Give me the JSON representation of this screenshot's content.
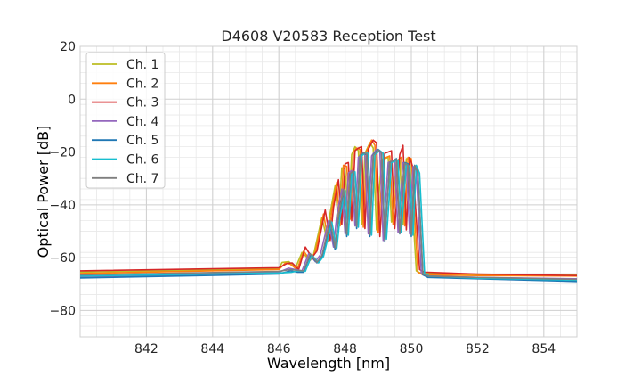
{
  "chart_data": {
    "type": "line",
    "title": "D4608 V20583 Reception Test",
    "xlabel": "Wavelength [nm]",
    "ylabel": "Optical Power [dB]",
    "xlim": [
      840.0,
      855.0
    ],
    "ylim": [
      -90,
      20
    ],
    "x_ticks": [
      842,
      844,
      846,
      848,
      850,
      852,
      854
    ],
    "x_minor_step": 0.5,
    "y_ticks": [
      20,
      0,
      -20,
      -40,
      -60,
      -80
    ],
    "y_minor_step": 4,
    "grid": true,
    "legend_placement": "upper-left",
    "series": [
      {
        "name": "Ch. 1",
        "color": "#bcbd22",
        "points": [
          [
            840.0,
            -65.5
          ],
          [
            846.0,
            -64.2
          ],
          [
            846.1,
            -61.8
          ],
          [
            846.3,
            -61.5
          ],
          [
            846.5,
            -64.0
          ],
          [
            846.7,
            -58.0
          ],
          [
            846.9,
            -60.5
          ],
          [
            847.05,
            -58.8
          ],
          [
            847.3,
            -44.8
          ],
          [
            847.45,
            -53.0
          ],
          [
            847.55,
            -43.0
          ],
          [
            847.7,
            -32.8
          ],
          [
            847.8,
            -47.0
          ],
          [
            847.9,
            -26.0
          ],
          [
            848.0,
            -26.5
          ],
          [
            848.1,
            -44.5
          ],
          [
            848.2,
            -21.0
          ],
          [
            848.3,
            -18.0
          ],
          [
            848.4,
            -19.5
          ],
          [
            848.5,
            -47.5
          ],
          [
            848.6,
            -20.5
          ],
          [
            848.75,
            -16.5
          ],
          [
            848.85,
            -18.5
          ],
          [
            848.95,
            -49.5
          ],
          [
            849.1,
            -23.0
          ],
          [
            849.3,
            -22.0
          ],
          [
            849.4,
            -46.5
          ],
          [
            849.55,
            -23.5
          ],
          [
            849.65,
            -23.0
          ],
          [
            849.75,
            -47.5
          ],
          [
            849.85,
            -22.5
          ],
          [
            849.95,
            -22.5
          ],
          [
            850.15,
            -65.0
          ],
          [
            850.3,
            -66.0
          ],
          [
            852.0,
            -66.3
          ],
          [
            855.0,
            -66.5
          ]
        ]
      },
      {
        "name": "Ch. 2",
        "color": "#ff7f0e",
        "points": [
          [
            840.0,
            -66.0
          ],
          [
            846.0,
            -64.5
          ],
          [
            846.2,
            -62.0
          ],
          [
            846.35,
            -62.5
          ],
          [
            846.55,
            -64.5
          ],
          [
            846.75,
            -57.5
          ],
          [
            846.95,
            -61.0
          ],
          [
            847.1,
            -58.0
          ],
          [
            847.35,
            -43.5
          ],
          [
            847.5,
            -54.0
          ],
          [
            847.6,
            -42.0
          ],
          [
            847.75,
            -31.5
          ],
          [
            847.85,
            -48.0
          ],
          [
            847.95,
            -25.0
          ],
          [
            848.05,
            -25.5
          ],
          [
            848.15,
            -45.5
          ],
          [
            848.25,
            -20.0
          ],
          [
            848.35,
            -18.5
          ],
          [
            848.45,
            -19.0
          ],
          [
            848.55,
            -48.5
          ],
          [
            848.65,
            -19.5
          ],
          [
            848.8,
            -15.5
          ],
          [
            848.9,
            -17.5
          ],
          [
            849.0,
            -50.5
          ],
          [
            849.15,
            -22.5
          ],
          [
            849.35,
            -21.5
          ],
          [
            849.45,
            -47.5
          ],
          [
            849.6,
            -23.0
          ],
          [
            849.7,
            -22.0
          ],
          [
            849.8,
            -48.0
          ],
          [
            849.9,
            -22.0
          ],
          [
            850.0,
            -22.5
          ],
          [
            850.2,
            -65.5
          ],
          [
            850.35,
            -66.5
          ],
          [
            852.0,
            -66.8
          ],
          [
            855.0,
            -67.0
          ]
        ]
      },
      {
        "name": "Ch. 3",
        "color": "#d62728",
        "points": [
          [
            840.0,
            -65.0
          ],
          [
            846.0,
            -63.8
          ],
          [
            846.25,
            -62.2
          ],
          [
            846.4,
            -62.0
          ],
          [
            846.6,
            -64.5
          ],
          [
            846.8,
            -56.0
          ],
          [
            847.0,
            -60.0
          ],
          [
            847.15,
            -57.5
          ],
          [
            847.4,
            -42.0
          ],
          [
            847.55,
            -53.5
          ],
          [
            847.65,
            -41.0
          ],
          [
            847.8,
            -30.5
          ],
          [
            847.9,
            -47.5
          ],
          [
            848.0,
            -24.5
          ],
          [
            848.1,
            -24.0
          ],
          [
            848.2,
            -46.0
          ],
          [
            848.3,
            -19.5
          ],
          [
            848.4,
            -18.5
          ],
          [
            848.5,
            -18.0
          ],
          [
            848.6,
            -49.0
          ],
          [
            848.7,
            -19.0
          ],
          [
            848.85,
            -15.5
          ],
          [
            848.95,
            -16.5
          ],
          [
            849.05,
            -52.0
          ],
          [
            849.2,
            -20.5
          ],
          [
            849.4,
            -19.5
          ],
          [
            849.5,
            -49.0
          ],
          [
            849.65,
            -21.0
          ],
          [
            849.75,
            -17.5
          ],
          [
            849.85,
            -49.5
          ],
          [
            849.95,
            -22.0
          ],
          [
            850.05,
            -26.0
          ],
          [
            850.25,
            -64.5
          ],
          [
            850.4,
            -65.5
          ],
          [
            852.0,
            -66.2
          ],
          [
            855.0,
            -66.8
          ]
        ]
      },
      {
        "name": "Ch. 4",
        "color": "#9467bd",
        "points": [
          [
            840.0,
            -67.5
          ],
          [
            846.0,
            -65.5
          ],
          [
            846.3,
            -64.0
          ],
          [
            846.5,
            -64.5
          ],
          [
            846.7,
            -65.0
          ],
          [
            846.9,
            -58.5
          ],
          [
            847.1,
            -61.5
          ],
          [
            847.25,
            -59.0
          ],
          [
            847.5,
            -46.0
          ],
          [
            847.65,
            -56.0
          ],
          [
            847.75,
            -44.0
          ],
          [
            847.9,
            -34.0
          ],
          [
            848.0,
            -51.0
          ],
          [
            848.1,
            -28.0
          ],
          [
            848.2,
            -27.0
          ],
          [
            848.3,
            -48.0
          ],
          [
            848.4,
            -22.0
          ],
          [
            848.5,
            -21.0
          ],
          [
            848.6,
            -20.5
          ],
          [
            848.7,
            -51.0
          ],
          [
            848.8,
            -21.5
          ],
          [
            848.95,
            -19.0
          ],
          [
            849.05,
            -20.0
          ],
          [
            849.15,
            -53.5
          ],
          [
            849.3,
            -24.0
          ],
          [
            849.5,
            -23.0
          ],
          [
            849.6,
            -50.5
          ],
          [
            849.75,
            -24.0
          ],
          [
            849.85,
            -25.0
          ],
          [
            849.95,
            -51.0
          ],
          [
            850.05,
            -25.5
          ],
          [
            850.15,
            -27.0
          ],
          [
            850.3,
            -66.0
          ],
          [
            850.45,
            -67.0
          ],
          [
            852.0,
            -67.5
          ],
          [
            855.0,
            -68.0
          ]
        ]
      },
      {
        "name": "Ch. 5",
        "color": "#1f77b4",
        "points": [
          [
            840.0,
            -67.7
          ],
          [
            846.0,
            -66.2
          ],
          [
            846.35,
            -65.0
          ],
          [
            846.55,
            -65.5
          ],
          [
            846.75,
            -65.5
          ],
          [
            846.95,
            -59.0
          ],
          [
            847.15,
            -62.0
          ],
          [
            847.3,
            -60.0
          ],
          [
            847.55,
            -47.0
          ],
          [
            847.7,
            -57.0
          ],
          [
            847.8,
            -45.0
          ],
          [
            847.95,
            -35.0
          ],
          [
            848.05,
            -52.0
          ],
          [
            848.15,
            -29.0
          ],
          [
            848.25,
            -28.0
          ],
          [
            848.35,
            -49.0
          ],
          [
            848.45,
            -21.5
          ],
          [
            848.55,
            -20.5
          ],
          [
            848.65,
            -21.0
          ],
          [
            848.75,
            -52.0
          ],
          [
            848.85,
            -21.0
          ],
          [
            849.0,
            -19.0
          ],
          [
            849.1,
            -20.0
          ],
          [
            849.2,
            -54.0
          ],
          [
            849.35,
            -24.0
          ],
          [
            849.55,
            -22.5
          ],
          [
            849.65,
            -51.0
          ],
          [
            849.8,
            -24.0
          ],
          [
            849.9,
            -24.5
          ],
          [
            850.0,
            -52.0
          ],
          [
            850.1,
            -25.0
          ],
          [
            850.2,
            -27.5
          ],
          [
            850.35,
            -66.5
          ],
          [
            850.5,
            -67.5
          ],
          [
            852.0,
            -68.0
          ],
          [
            855.0,
            -69.0
          ]
        ]
      },
      {
        "name": "Ch. 6",
        "color": "#17becf",
        "points": [
          [
            840.0,
            -67.0
          ],
          [
            846.0,
            -65.8
          ],
          [
            846.4,
            -65.5
          ],
          [
            846.6,
            -65.0
          ],
          [
            846.8,
            -65.2
          ],
          [
            847.0,
            -59.0
          ],
          [
            847.2,
            -62.0
          ],
          [
            847.35,
            -59.5
          ],
          [
            847.6,
            -46.5
          ],
          [
            847.75,
            -56.5
          ],
          [
            847.85,
            -44.5
          ],
          [
            848.0,
            -34.5
          ],
          [
            848.1,
            -51.5
          ],
          [
            848.2,
            -28.5
          ],
          [
            848.3,
            -27.5
          ],
          [
            848.4,
            -48.5
          ],
          [
            848.5,
            -21.5
          ],
          [
            848.6,
            -20.5
          ],
          [
            848.7,
            -20.5
          ],
          [
            848.8,
            -51.5
          ],
          [
            848.9,
            -21.0
          ],
          [
            849.05,
            -19.5
          ],
          [
            849.15,
            -20.5
          ],
          [
            849.25,
            -53.0
          ],
          [
            849.4,
            -24.0
          ],
          [
            849.6,
            -23.0
          ],
          [
            849.7,
            -50.5
          ],
          [
            849.85,
            -24.5
          ],
          [
            849.95,
            -25.5
          ],
          [
            850.05,
            -51.5
          ],
          [
            850.15,
            -25.0
          ],
          [
            850.25,
            -28.0
          ],
          [
            850.4,
            -66.0
          ],
          [
            850.55,
            -67.0
          ],
          [
            852.0,
            -67.8
          ],
          [
            855.0,
            -68.5
          ]
        ]
      },
      {
        "name": "Ch. 7",
        "color": "#7f7f7f",
        "points": [
          [
            840.0,
            -66.5
          ],
          [
            846.0,
            -65.2
          ],
          [
            846.35,
            -64.5
          ],
          [
            846.55,
            -64.8
          ],
          [
            846.75,
            -65.0
          ],
          [
            846.95,
            -58.5
          ],
          [
            847.15,
            -61.8
          ],
          [
            847.3,
            -59.2
          ],
          [
            847.55,
            -46.0
          ],
          [
            847.7,
            -56.2
          ],
          [
            847.8,
            -44.2
          ],
          [
            847.95,
            -34.2
          ],
          [
            848.05,
            -51.2
          ],
          [
            848.15,
            -28.2
          ],
          [
            848.25,
            -27.2
          ],
          [
            848.35,
            -48.2
          ],
          [
            848.45,
            -21.2
          ],
          [
            848.55,
            -20.2
          ],
          [
            848.65,
            -20.8
          ],
          [
            848.75,
            -51.2
          ],
          [
            848.85,
            -21.2
          ],
          [
            849.0,
            -19.2
          ],
          [
            849.1,
            -20.2
          ],
          [
            849.2,
            -53.5
          ],
          [
            849.35,
            -23.8
          ],
          [
            849.55,
            -22.8
          ],
          [
            849.65,
            -50.8
          ],
          [
            849.8,
            -24.2
          ],
          [
            849.9,
            -25.0
          ],
          [
            850.0,
            -51.2
          ],
          [
            850.1,
            -25.2
          ],
          [
            850.2,
            -27.8
          ],
          [
            850.35,
            -66.2
          ],
          [
            850.5,
            -67.0
          ],
          [
            852.0,
            -67.5
          ],
          [
            855.0,
            -68.2
          ]
        ]
      }
    ]
  }
}
